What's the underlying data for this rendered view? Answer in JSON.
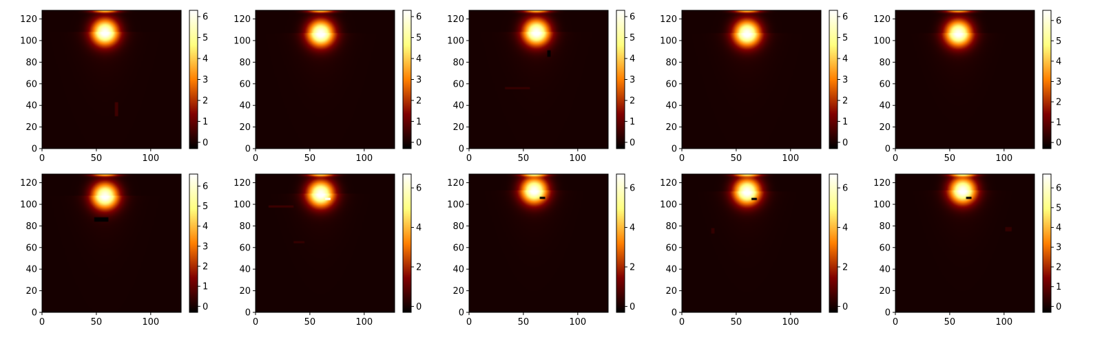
{
  "figure": {
    "rows": 2,
    "cols": 5
  },
  "colormap": {
    "name": "afmhot",
    "stops": [
      {
        "t": 0.0,
        "color": "#000000"
      },
      {
        "t": 0.25,
        "color": "#800000"
      },
      {
        "t": 0.5,
        "color": "#ff8000"
      },
      {
        "t": 0.75,
        "color": "#ffff80"
      },
      {
        "t": 1.0,
        "color": "#ffffff"
      }
    ]
  },
  "chart_data": [
    {
      "type": "heatmap",
      "row": 0,
      "col": 0,
      "xlim": [
        0,
        128
      ],
      "ylim": [
        0,
        128
      ],
      "xticks": [
        0,
        50,
        100
      ],
      "yticks": [
        0,
        20,
        40,
        60,
        80,
        100,
        120
      ],
      "clim": [
        -0.3,
        6.3
      ],
      "cticks": [
        0,
        1,
        2,
        3,
        4,
        5,
        6
      ],
      "hotspot": {
        "x": 58,
        "y": 108,
        "peak": 6.2
      },
      "top_glow": {
        "x": 58,
        "y": 127.5
      },
      "artifacts": [
        {
          "x0": 67,
          "y0": 30,
          "x1": 70,
          "y1": 43,
          "value": 0.5
        }
      ]
    },
    {
      "type": "heatmap",
      "row": 0,
      "col": 1,
      "xlim": [
        0,
        128
      ],
      "ylim": [
        0,
        128
      ],
      "xticks": [
        0,
        50,
        100
      ],
      "yticks": [
        0,
        20,
        40,
        60,
        80,
        100,
        120
      ],
      "clim": [
        -0.3,
        6.3
      ],
      "cticks": [
        0,
        1,
        2,
        3,
        4,
        5,
        6
      ],
      "hotspot": {
        "x": 60,
        "y": 107,
        "peak": 6.2
      },
      "top_glow": {
        "x": 60,
        "y": 127.5
      },
      "artifacts": []
    },
    {
      "type": "heatmap",
      "row": 0,
      "col": 2,
      "xlim": [
        0,
        128
      ],
      "ylim": [
        0,
        128
      ],
      "xticks": [
        0,
        50,
        100
      ],
      "yticks": [
        0,
        20,
        40,
        60,
        80,
        100,
        120
      ],
      "clim": [
        -0.3,
        6.3
      ],
      "cticks": [
        0,
        1,
        2,
        3,
        4,
        5,
        6
      ],
      "hotspot": {
        "x": 62,
        "y": 108,
        "peak": 6.2
      },
      "top_glow": {
        "x": 62,
        "y": 127.5
      },
      "artifacts": [
        {
          "x0": 33,
          "y0": 55,
          "x1": 56,
          "y1": 57,
          "value": 0.4
        },
        {
          "x0": 72,
          "y0": 85,
          "x1": 75,
          "y1": 91,
          "value": -0.3
        }
      ]
    },
    {
      "type": "heatmap",
      "row": 0,
      "col": 3,
      "xlim": [
        0,
        128
      ],
      "ylim": [
        0,
        128
      ],
      "xticks": [
        0,
        50,
        100
      ],
      "yticks": [
        0,
        20,
        40,
        60,
        80,
        100,
        120
      ],
      "clim": [
        -0.3,
        6.3
      ],
      "cticks": [
        0,
        1,
        2,
        3,
        4,
        5,
        6
      ],
      "hotspot": {
        "x": 60,
        "y": 107,
        "peak": 6.2
      },
      "top_glow": {
        "x": 60,
        "y": 127.5
      },
      "artifacts": []
    },
    {
      "type": "heatmap",
      "row": 0,
      "col": 4,
      "xlim": [
        0,
        128
      ],
      "ylim": [
        0,
        128
      ],
      "xticks": [
        0,
        50,
        100
      ],
      "yticks": [
        0,
        20,
        40,
        60,
        80,
        100,
        120
      ],
      "clim": [
        -0.3,
        6.5
      ],
      "cticks": [
        0,
        1,
        2,
        3,
        4,
        5,
        6
      ],
      "hotspot": {
        "x": 58,
        "y": 107,
        "peak": 6.3
      },
      "top_glow": {
        "x": 58,
        "y": 127.5
      },
      "artifacts": []
    },
    {
      "type": "heatmap",
      "row": 1,
      "col": 0,
      "xlim": [
        0,
        128
      ],
      "ylim": [
        0,
        128
      ],
      "xticks": [
        0,
        50,
        100
      ],
      "yticks": [
        0,
        20,
        40,
        60,
        80,
        100,
        120
      ],
      "clim": [
        -0.3,
        6.6
      ],
      "cticks": [
        0,
        1,
        2,
        3,
        4,
        5,
        6
      ],
      "hotspot": {
        "x": 58,
        "y": 108,
        "peak": 6.4
      },
      "top_glow": {
        "x": 58,
        "y": 127.5
      },
      "artifacts": [
        {
          "x0": 48,
          "y0": 84,
          "x1": 61,
          "y1": 88,
          "value": -0.3
        }
      ]
    },
    {
      "type": "heatmap",
      "row": 1,
      "col": 1,
      "xlim": [
        0,
        128
      ],
      "ylim": [
        0,
        128
      ],
      "xticks": [
        0,
        50,
        100
      ],
      "yticks": [
        0,
        20,
        40,
        60,
        80,
        100,
        120
      ],
      "clim": [
        -0.3,
        6.7
      ],
      "cticks": [
        0,
        2,
        4,
        6
      ],
      "hotspot": {
        "x": 60,
        "y": 110,
        "peak": 6.6
      },
      "top_glow": {
        "x": 60,
        "y": 127.5
      },
      "artifacts": [
        {
          "x0": 12,
          "y0": 97,
          "x1": 35,
          "y1": 99,
          "value": 0.5
        },
        {
          "x0": 35,
          "y0": 64,
          "x1": 45,
          "y1": 66,
          "value": 0.4
        },
        {
          "x0": 64,
          "y0": 104,
          "x1": 69,
          "y1": 106,
          "value": 6.6
        }
      ]
    },
    {
      "type": "heatmap",
      "row": 1,
      "col": 2,
      "xlim": [
        0,
        128
      ],
      "ylim": [
        0,
        128
      ],
      "xticks": [
        0,
        50,
        100
      ],
      "yticks": [
        0,
        20,
        40,
        60,
        80,
        100,
        120
      ],
      "clim": [
        -0.3,
        6.7
      ],
      "cticks": [
        0,
        2,
        4,
        6
      ],
      "hotspot": {
        "x": 60,
        "y": 113,
        "peak": 6.6
      },
      "top_glow": {
        "x": 60,
        "y": 127.5
      },
      "artifacts": [
        {
          "x0": 65,
          "y0": 105,
          "x1": 70,
          "y1": 107,
          "value": -0.3
        }
      ]
    },
    {
      "type": "heatmap",
      "row": 1,
      "col": 3,
      "xlim": [
        0,
        128
      ],
      "ylim": [
        0,
        128
      ],
      "xticks": [
        0,
        50,
        100
      ],
      "yticks": [
        0,
        20,
        40,
        60,
        80,
        100,
        120
      ],
      "clim": [
        -0.3,
        6.7
      ],
      "cticks": [
        0,
        2,
        4,
        6
      ],
      "hotspot": {
        "x": 60,
        "y": 112,
        "peak": 6.6
      },
      "top_glow": {
        "x": 60,
        "y": 127.5
      },
      "artifacts": [
        {
          "x0": 27,
          "y0": 73,
          "x1": 30,
          "y1": 78,
          "value": 0.4
        },
        {
          "x0": 64,
          "y0": 104,
          "x1": 69,
          "y1": 106,
          "value": -0.3
        }
      ]
    },
    {
      "type": "heatmap",
      "row": 1,
      "col": 4,
      "xlim": [
        0,
        128
      ],
      "ylim": [
        0,
        128
      ],
      "xticks": [
        0,
        50,
        100
      ],
      "yticks": [
        0,
        20,
        40,
        60,
        80,
        100,
        120
      ],
      "clim": [
        -0.3,
        6.7
      ],
      "cticks": [
        0,
        1,
        2,
        3,
        4,
        5,
        6
      ],
      "hotspot": {
        "x": 62,
        "y": 113,
        "peak": 6.6
      },
      "top_glow": {
        "x": 62,
        "y": 127.5
      },
      "artifacts": [
        {
          "x0": 101,
          "y0": 75,
          "x1": 107,
          "y1": 79,
          "value": 0.4
        },
        {
          "x0": 65,
          "y0": 105,
          "x1": 70,
          "y1": 107,
          "value": -0.3
        }
      ]
    }
  ]
}
